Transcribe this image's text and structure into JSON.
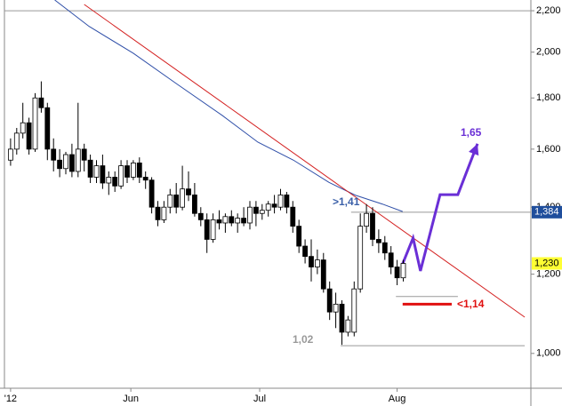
{
  "chart_data": {
    "type": "candlestick",
    "log_scale": true,
    "ylim": [
      923,
      2255
    ],
    "yticks": [
      {
        "value": 2200,
        "label": "2,200"
      },
      {
        "value": 2000,
        "label": "2,000"
      },
      {
        "value": 1800,
        "label": "1,800"
      },
      {
        "value": 1600,
        "label": "1,600"
      },
      {
        "value": 1400,
        "label": "1,400"
      },
      {
        "value": 1200,
        "label": "1,200"
      },
      {
        "value": 1000,
        "label": "1,000"
      }
    ],
    "xlim": [
      -1,
      84.8
    ],
    "xticks": [
      {
        "value": 0,
        "label": "'12"
      },
      {
        "value": 19.6,
        "label": "Jun"
      },
      {
        "value": 40.6,
        "label": "Jul"
      },
      {
        "value": 63,
        "label": "Aug"
      }
    ],
    "x": [
      0,
      1,
      2,
      3,
      4,
      5,
      6,
      7,
      8,
      9,
      10,
      11,
      12,
      13,
      14,
      15,
      16,
      17,
      18,
      19,
      20,
      21,
      22,
      23,
      24,
      25,
      26,
      27,
      28,
      29,
      30,
      31,
      32,
      33,
      34,
      35,
      36,
      37,
      38,
      39,
      40,
      41,
      42,
      43,
      44,
      45,
      46,
      47,
      48,
      49,
      50,
      51,
      52,
      53,
      54,
      55,
      56,
      57,
      58,
      59,
      60,
      61,
      62,
      63,
      64
    ],
    "open": [
      1560,
      1600,
      1660,
      1700,
      1600,
      1800,
      1760,
      1600,
      1560,
      1530,
      1580,
      1520,
      1600,
      1560,
      1500,
      1540,
      1480,
      1500,
      1470,
      1540,
      1500,
      1550,
      1500,
      1490,
      1400,
      1360,
      1400,
      1440,
      1400,
      1460,
      1440,
      1380,
      1360,
      1300,
      1360,
      1350,
      1370,
      1350,
      1365,
      1350,
      1400,
      1380,
      1390,
      1410,
      1400,
      1440,
      1400,
      1340,
      1280,
      1250,
      1220,
      1240,
      1160,
      1100,
      1120,
      1050,
      1050,
      1160,
      1340,
      1380,
      1300,
      1290,
      1260,
      1220,
      1190
    ],
    "high": [
      1640,
      1680,
      1780,
      1720,
      1820,
      1870,
      1780,
      1640,
      1600,
      1590,
      1620,
      1780,
      1620,
      1580,
      1560,
      1580,
      1520,
      1520,
      1560,
      1560,
      1560,
      1570,
      1520,
      1500,
      1420,
      1420,
      1460,
      1480,
      1540,
      1520,
      1480,
      1400,
      1380,
      1380,
      1390,
      1380,
      1390,
      1380,
      1400,
      1420,
      1420,
      1410,
      1420,
      1440,
      1460,
      1450,
      1420,
      1360,
      1300,
      1300,
      1270,
      1260,
      1180,
      1150,
      1130,
      1090,
      1180,
      1380,
      1410,
      1400,
      1330,
      1310,
      1280,
      1240,
      1240
    ],
    "low": [
      1540,
      1580,
      1640,
      1580,
      1590,
      1740,
      1560,
      1520,
      1500,
      1510,
      1500,
      1500,
      1520,
      1480,
      1480,
      1460,
      1440,
      1450,
      1460,
      1480,
      1490,
      1480,
      1460,
      1380,
      1340,
      1350,
      1380,
      1380,
      1390,
      1420,
      1370,
      1340,
      1260,
      1290,
      1330,
      1320,
      1340,
      1320,
      1340,
      1330,
      1340,
      1360,
      1370,
      1380,
      1390,
      1380,
      1320,
      1260,
      1230,
      1180,
      1200,
      1150,
      1080,
      1060,
      1020,
      1040,
      1040,
      1150,
      1320,
      1280,
      1260,
      1240,
      1200,
      1170,
      1180
    ],
    "close": [
      1600,
      1660,
      1700,
      1600,
      1800,
      1760,
      1600,
      1560,
      1530,
      1580,
      1520,
      1600,
      1560,
      1500,
      1540,
      1480,
      1500,
      1470,
      1540,
      1500,
      1550,
      1500,
      1490,
      1400,
      1360,
      1400,
      1440,
      1400,
      1460,
      1440,
      1380,
      1360,
      1300,
      1360,
      1350,
      1370,
      1350,
      1365,
      1350,
      1400,
      1380,
      1390,
      1410,
      1400,
      1440,
      1400,
      1340,
      1280,
      1250,
      1220,
      1240,
      1160,
      1100,
      1120,
      1050,
      1080,
      1160,
      1340,
      1380,
      1300,
      1290,
      1260,
      1220,
      1190,
      1230
    ],
    "up_color": "#ffffff",
    "down_color": "#000000",
    "lines": [
      {
        "color": "#2f4fa8",
        "x": [
          7.2,
          12.8,
          20,
          27.2,
          34.5,
          40.3,
          46.1,
          51.9,
          56.2,
          60.6,
          63.9
        ],
        "values": [
          2255,
          2122,
          1995,
          1857,
          1729,
          1626,
          1560,
          1482,
          1439,
          1410,
          1386
        ]
      },
      {
        "color": "#d42020",
        "x": [
          12.0,
          83.8
        ],
        "values": [
          2232,
          1087
        ]
      },
      {
        "color": "#6a2fd6",
        "x": [
          63.9,
          65.6,
          66.8,
          70.0,
          72.9,
          76.1
        ],
        "values": [
          1229,
          1304,
          1209,
          1441,
          1441,
          1620
        ]
      }
    ],
    "levels": [
      {
        "value": 2200,
        "color": "#999999",
        "x": [
          -1,
          84.8
        ]
      },
      {
        "value": 1384,
        "color": "#999999",
        "x": [
          55.5,
          84.8
        ]
      },
      {
        "value": 1140,
        "color": "#999999",
        "x": [
          62.8,
          72.9
        ]
      },
      {
        "value": 1120,
        "color": "#e01010",
        "x": [
          63.9,
          71.9
        ]
      },
      {
        "value": 1018,
        "color": "#999999",
        "x": [
          53.8,
          83.8
        ]
      }
    ],
    "price_markers": [
      {
        "value": 1384,
        "label": "1,384",
        "color": "#1f4e9c",
        "text_color": "#ffffff"
      },
      {
        "value": 1230,
        "label": "1,230",
        "color": "#ffff33",
        "text_color": "#000000"
      }
    ],
    "annotations": [
      {
        "text": ">1,41",
        "color": "#3a5fa8"
      },
      {
        "text": "1,02",
        "color": "#999999"
      },
      {
        "text": "<1,14",
        "color": "#e01010"
      },
      {
        "text": "1,65",
        "color": "#6a2fd6"
      }
    ]
  }
}
